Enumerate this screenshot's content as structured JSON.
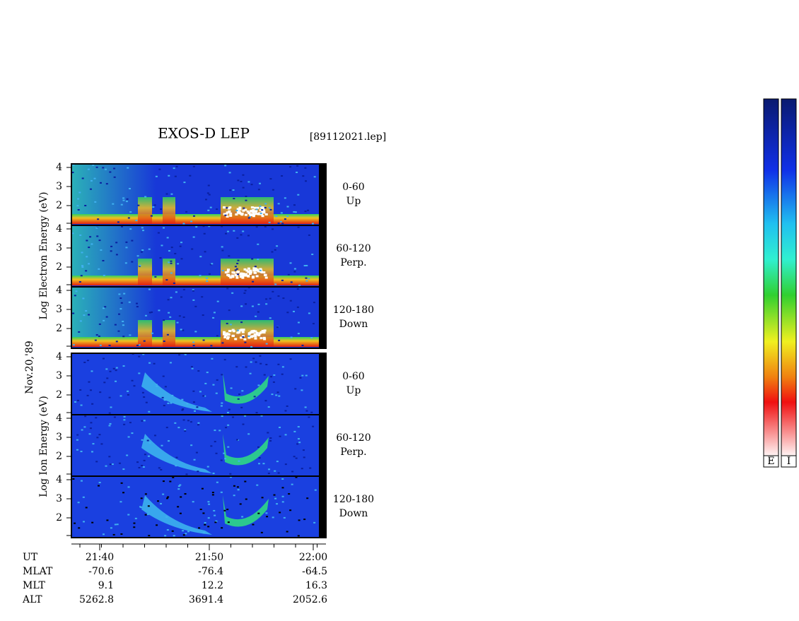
{
  "header": {
    "title": "EXOS-D LEP",
    "file": "[89112021.lep]"
  },
  "date_label": "Nov.20,'89",
  "electron": {
    "axis_label": "Log Electron Energy (eV)",
    "panels": [
      {
        "yticks": [
          "4",
          "3",
          "2"
        ],
        "angle": "0-60",
        "direction": "Up"
      },
      {
        "yticks": [
          "4",
          "3",
          "2"
        ],
        "angle": "60-120",
        "direction": "Perp."
      },
      {
        "yticks": [
          "4",
          "3",
          "2"
        ],
        "angle": "120-180",
        "direction": "Down"
      }
    ]
  },
  "ion": {
    "axis_label": "Log Ion Energy (eV)",
    "panels": [
      {
        "yticks": [
          "4",
          "3",
          "2"
        ],
        "angle": "0-60",
        "direction": "Up"
      },
      {
        "yticks": [
          "4",
          "3",
          "2"
        ],
        "angle": "60-120",
        "direction": "Perp."
      },
      {
        "yticks": [
          "4",
          "3",
          "2"
        ],
        "angle": "120-180",
        "direction": "Down"
      }
    ]
  },
  "orbit_table": {
    "rows": [
      {
        "label": "UT",
        "values": [
          "21:40",
          "21:50",
          "22:00"
        ]
      },
      {
        "label": "MLAT",
        "values": [
          "-70.6",
          "-76.4",
          "-64.5"
        ]
      },
      {
        "label": "MLT",
        "values": [
          "9.1",
          "12.2",
          "16.3"
        ]
      },
      {
        "label": "ALT",
        "values": [
          "5262.8",
          "3691.4",
          "2052.6"
        ]
      }
    ]
  },
  "color_bars": [
    "E",
    "I"
  ]
}
